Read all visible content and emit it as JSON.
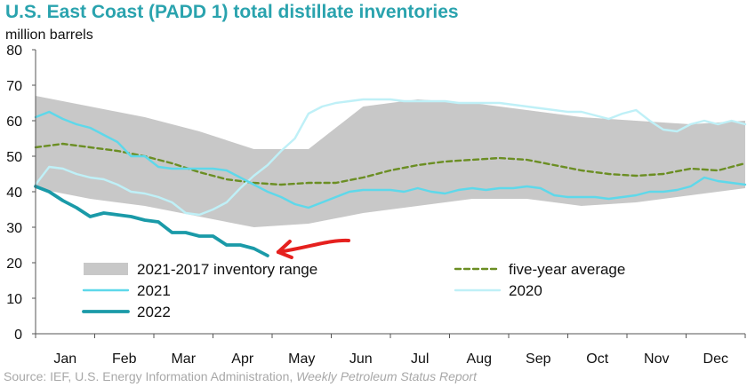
{
  "chart_data": {
    "type": "line",
    "title": "U.S. East Coast (PADD 1) total distillate inventories",
    "ylabel": "million barrels",
    "ylim": [
      0,
      80
    ],
    "yticks": [
      "0",
      "10",
      "20",
      "30",
      "40",
      "50",
      "60",
      "70",
      "80"
    ],
    "categories": [
      "Jan",
      "Feb",
      "Mar",
      "Apr",
      "May",
      "Jun",
      "Jul",
      "Aug",
      "Sep",
      "Oct",
      "Nov",
      "Dec"
    ],
    "x_unit": "week",
    "x_range": [
      0,
      52
    ],
    "series": [
      {
        "name": "2021-2017 inventory range",
        "kind": "band",
        "color": "#c8c8c8",
        "x": [
          0,
          4,
          8,
          12,
          16,
          20,
          24,
          28,
          32,
          36,
          40,
          44,
          48,
          52
        ],
        "upper": [
          67,
          64,
          61,
          57,
          52,
          52,
          64,
          66,
          65,
          63,
          61,
          60,
          59,
          60
        ],
        "lower": [
          41,
          38,
          36,
          33,
          30,
          31,
          34,
          36,
          38,
          38,
          36,
          37,
          39,
          41
        ]
      },
      {
        "name": "five-year average",
        "kind": "dashed",
        "color": "#6b8e23",
        "x": [
          0,
          2,
          4,
          6,
          8,
          10,
          12,
          14,
          16,
          18,
          20,
          22,
          24,
          26,
          28,
          30,
          32,
          34,
          36,
          38,
          40,
          42,
          44,
          46,
          48,
          50,
          52
        ],
        "values": [
          52.5,
          53.5,
          52.5,
          51.5,
          50,
          48,
          45.5,
          43.5,
          42.5,
          42,
          42.5,
          42.5,
          44,
          46,
          47.5,
          48.5,
          49,
          49.5,
          49,
          47.5,
          46,
          45,
          44.5,
          45,
          46.5,
          46,
          48
        ]
      },
      {
        "name": "2021",
        "kind": "line",
        "color": "#5ed8ea",
        "x": [
          0,
          1,
          2,
          3,
          4,
          5,
          6,
          7,
          8,
          9,
          10,
          11,
          12,
          13,
          14,
          15,
          16,
          17,
          18,
          19,
          20,
          21,
          22,
          23,
          24,
          25,
          26,
          27,
          28,
          29,
          30,
          31,
          32,
          33,
          34,
          35,
          36,
          37,
          38,
          39,
          40,
          41,
          42,
          43,
          44,
          45,
          46,
          47,
          48,
          49,
          50,
          51,
          52
        ],
        "values": [
          61,
          62.5,
          60.5,
          59,
          58,
          56,
          54,
          50,
          50,
          47,
          46.5,
          46.5,
          46.5,
          46.5,
          46,
          44,
          42,
          40,
          38.5,
          36.5,
          35.5,
          37,
          38.5,
          40,
          40.5,
          40.5,
          40.5,
          40,
          41,
          40,
          39.5,
          40.5,
          41,
          40.5,
          41,
          41,
          41.5,
          41,
          39,
          38.5,
          38.5,
          38.5,
          38,
          38.5,
          39,
          40,
          40,
          40.5,
          41.5,
          44,
          43,
          42.5,
          42
        ]
      },
      {
        "name": "2020",
        "kind": "line",
        "color": "#bff0f7",
        "x": [
          0,
          1,
          2,
          3,
          4,
          5,
          6,
          7,
          8,
          9,
          10,
          11,
          12,
          13,
          14,
          15,
          16,
          17,
          18,
          19,
          20,
          21,
          22,
          23,
          24,
          25,
          26,
          27,
          28,
          29,
          30,
          31,
          32,
          33,
          34,
          35,
          36,
          37,
          38,
          39,
          40,
          41,
          42,
          43,
          44,
          45,
          46,
          47,
          48,
          49,
          50,
          51,
          52
        ],
        "values": [
          42,
          47,
          46.5,
          45,
          44,
          43.5,
          42,
          40,
          39.5,
          38.5,
          37,
          34,
          33.5,
          35,
          37,
          41,
          44.5,
          47.5,
          51.5,
          55,
          62,
          64,
          65,
          65.5,
          66,
          66,
          66,
          65.5,
          65.5,
          65.5,
          65.5,
          65,
          65,
          65,
          65,
          64.5,
          64,
          63.5,
          63,
          62.5,
          62.5,
          61.5,
          60.5,
          62,
          63,
          60,
          57.5,
          57,
          59,
          60,
          59,
          60,
          59
        ]
      },
      {
        "name": "2022",
        "kind": "line",
        "color": "#1a9aa8",
        "x": [
          0,
          1,
          2,
          3,
          4,
          5,
          6,
          7,
          8,
          9,
          10,
          11,
          12,
          13,
          14,
          15,
          16,
          17
        ],
        "values": [
          41.5,
          40,
          37.5,
          35.5,
          33,
          34,
          33.5,
          33,
          32,
          31.5,
          28.5,
          28.5,
          27.5,
          27.5,
          25,
          25,
          24,
          22
        ]
      }
    ],
    "legend": [
      {
        "label": "2021-2017 inventory range",
        "series": "2021-2017 inventory range"
      },
      {
        "label": "five-year average",
        "series": "five-year average"
      },
      {
        "label": "2021",
        "series": "2021"
      },
      {
        "label": "2020",
        "series": "2020"
      },
      {
        "label": "2022",
        "series": "2022"
      }
    ],
    "annotation": {
      "type": "arrow",
      "color": "#e5201e",
      "points_to": {
        "x": 17,
        "y": 22
      }
    }
  },
  "source": {
    "prefix": "Source: IEF, U.S. Energy Information Administration,",
    "publication": "Weekly Petroleum Status Report"
  }
}
